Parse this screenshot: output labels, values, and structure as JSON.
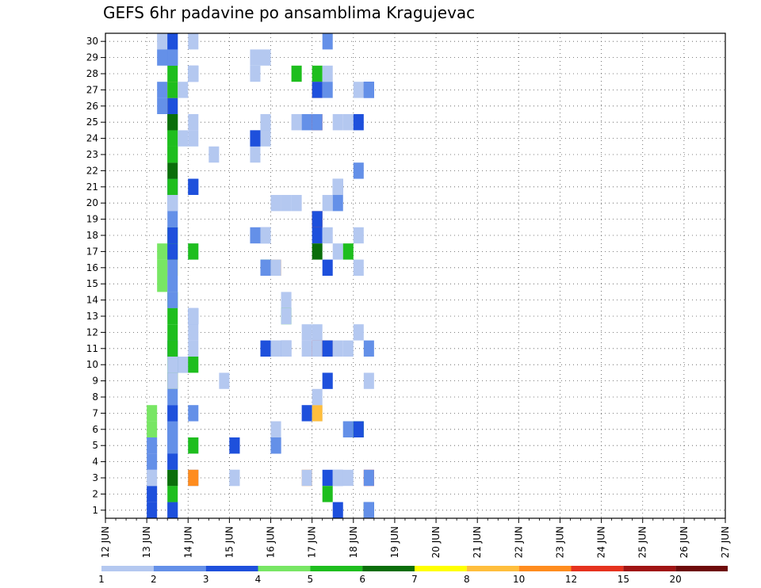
{
  "chart_data": {
    "type": "heatmap",
    "title": "GEFS 6hr padavine po ansamblima Kragujevac",
    "y_ticks": [
      "1",
      "2",
      "3",
      "4",
      "5",
      "6",
      "7",
      "8",
      "9",
      "10",
      "11",
      "12",
      "13",
      "14",
      "15",
      "16",
      "17",
      "18",
      "19",
      "20",
      "21",
      "22",
      "23",
      "24",
      "25",
      "26",
      "27",
      "28",
      "29",
      "30"
    ],
    "x_ticks": [
      "12 JUN",
      "13 JUN",
      "14 JUN",
      "15 JUN",
      "16 JUN",
      "17 JUN",
      "18 JUN",
      "19 JUN",
      "20 JUN",
      "21 JUN",
      "22 JUN",
      "23 JUN",
      "24 JUN",
      "25 JUN",
      "26 JUN",
      "27 JUN"
    ],
    "x_start": "12 JUN 00z",
    "step_hours": 6,
    "grid": true,
    "legend_values": [
      "1",
      "2",
      "3",
      "4",
      "5",
      "6",
      "7",
      "8",
      "10",
      "12",
      "15",
      "20"
    ],
    "legend_colors": [
      "#b4c8f0",
      "#6490e8",
      "#1e50dc",
      "#78e664",
      "#1ebe1e",
      "#0a6e0a",
      "#ffff00",
      "#ffbe3c",
      "#ff8c1e",
      "#e6321e",
      "#a01414",
      "#6e0a0a"
    ],
    "cells": [
      [
        3,
        1,
        1
      ],
      [
        3,
        1,
        2
      ],
      [
        1,
        1,
        3
      ],
      [
        2,
        1,
        4
      ],
      [
        2,
        1,
        5
      ],
      [
        4,
        1,
        6
      ],
      [
        4,
        1,
        7
      ],
      [
        4,
        2,
        15
      ],
      [
        4,
        2,
        17
      ],
      [
        4,
        2,
        16
      ],
      [
        2,
        2,
        26
      ],
      [
        2,
        2,
        27
      ],
      [
        1,
        2,
        30
      ],
      [
        2,
        2,
        29
      ],
      [
        2,
        3,
        1
      ],
      [
        3,
        3,
        1
      ],
      [
        5,
        3,
        2
      ],
      [
        5,
        3,
        3
      ],
      [
        6,
        3,
        3
      ],
      [
        2,
        3,
        4
      ],
      [
        3,
        3,
        4
      ],
      [
        3,
        3,
        5
      ],
      [
        2,
        3,
        5
      ],
      [
        3,
        3,
        6
      ],
      [
        2,
        3,
        6
      ],
      [
        2,
        3,
        7
      ],
      [
        3,
        3,
        7
      ],
      [
        2,
        3,
        8
      ],
      [
        6,
        3,
        9
      ],
      [
        1,
        3,
        9
      ],
      [
        5,
        3,
        10
      ],
      [
        1,
        3,
        10
      ],
      [
        3,
        3,
        11
      ],
      [
        5,
        3,
        11
      ],
      [
        5,
        3,
        12
      ],
      [
        5,
        3,
        13
      ],
      [
        5,
        3,
        14
      ],
      [
        2,
        3,
        14
      ],
      [
        2,
        3,
        15
      ],
      [
        7,
        3,
        16
      ],
      [
        2,
        3,
        16
      ],
      [
        5,
        3,
        17
      ],
      [
        3,
        3,
        17
      ],
      [
        5,
        3,
        18
      ],
      [
        3,
        3,
        18
      ],
      [
        2,
        3,
        19
      ],
      [
        2,
        3,
        20
      ],
      [
        1,
        3,
        20
      ],
      [
        3,
        3,
        21
      ],
      [
        5,
        3,
        21
      ],
      [
        6,
        3,
        22
      ],
      [
        5,
        3,
        23
      ],
      [
        5,
        3,
        24
      ],
      [
        5,
        3,
        23
      ],
      [
        5,
        3,
        24
      ],
      [
        5,
        3,
        25
      ],
      [
        6,
        3,
        25
      ],
      [
        8,
        3,
        26
      ],
      [
        3,
        3,
        26
      ],
      [
        8,
        3,
        27
      ],
      [
        5,
        3,
        27
      ],
      [
        5,
        3,
        28
      ],
      [
        3,
        3,
        29
      ],
      [
        2,
        3,
        29
      ],
      [
        2,
        3,
        30
      ],
      [
        3,
        3,
        30
      ],
      [
        2,
        4,
        10
      ],
      [
        1,
        4,
        10
      ],
      [
        1,
        4,
        24
      ],
      [
        1,
        4,
        27
      ],
      [
        2,
        5,
        3
      ],
      [
        9,
        5,
        3
      ],
      [
        1,
        5,
        5
      ],
      [
        5,
        5,
        5
      ],
      [
        2,
        5,
        7
      ],
      [
        5,
        5,
        10
      ],
      [
        1,
        5,
        12
      ],
      [
        1,
        5,
        11
      ],
      [
        2,
        5,
        13
      ],
      [
        1,
        5,
        13
      ],
      [
        1,
        5,
        17
      ],
      [
        5,
        5,
        17
      ],
      [
        2,
        5,
        21
      ],
      [
        3,
        5,
        21
      ],
      [
        1,
        5,
        24
      ],
      [
        1,
        5,
        25
      ],
      [
        2,
        5,
        28
      ],
      [
        1,
        5,
        28
      ],
      [
        1,
        5,
        30
      ],
      [
        1,
        7,
        23
      ],
      [
        1,
        8,
        9
      ],
      [
        3,
        9,
        5
      ],
      [
        3,
        9,
        5
      ],
      [
        1,
        9,
        3
      ],
      [
        1,
        9,
        3
      ],
      [
        1,
        11,
        23
      ],
      [
        1,
        11,
        29
      ],
      [
        1,
        11,
        28
      ],
      [
        2,
        11,
        24
      ],
      [
        3,
        11,
        24
      ],
      [
        2,
        11,
        18
      ],
      [
        2,
        12,
        25
      ],
      [
        1,
        12,
        29
      ],
      [
        1,
        12,
        24
      ],
      [
        5,
        12,
        16
      ],
      [
        2,
        12,
        16
      ],
      [
        3,
        12,
        11
      ],
      [
        2,
        12,
        18
      ],
      [
        1,
        12,
        18
      ],
      [
        1,
        12,
        25
      ],
      [
        8,
        13,
        16
      ],
      [
        10,
        13,
        16
      ],
      [
        8,
        13,
        16
      ],
      [
        1,
        13,
        16
      ],
      [
        1,
        13,
        5
      ],
      [
        3,
        13,
        5
      ],
      [
        2,
        13,
        5
      ],
      [
        1,
        13,
        6
      ],
      [
        1,
        13,
        11
      ],
      [
        1,
        13,
        20
      ],
      [
        1,
        14,
        20
      ],
      [
        1,
        14,
        14
      ],
      [
        5,
        14,
        13
      ],
      [
        1,
        14,
        13
      ],
      [
        3,
        14,
        11
      ],
      [
        1,
        14,
        11
      ],
      [
        5,
        15,
        28
      ],
      [
        1,
        15,
        20
      ],
      [
        1,
        15,
        25
      ],
      [
        9,
        16,
        3
      ],
      [
        1,
        16,
        3
      ],
      [
        3,
        16,
        7
      ],
      [
        2,
        16,
        25
      ],
      [
        1,
        16,
        12
      ],
      [
        1,
        16,
        11
      ],
      [
        9,
        17,
        27
      ],
      [
        5,
        17,
        28
      ],
      [
        3,
        17,
        27
      ],
      [
        3,
        17,
        18
      ],
      [
        10,
        17,
        25
      ],
      [
        10,
        17,
        11
      ],
      [
        1,
        17,
        11
      ],
      [
        1,
        17,
        12
      ],
      [
        11,
        17,
        19
      ],
      [
        3,
        17,
        19
      ],
      [
        6,
        17,
        17
      ],
      [
        1,
        17,
        7
      ],
      [
        8,
        17,
        7
      ],
      [
        1,
        17,
        8
      ],
      [
        2,
        17,
        25
      ],
      [
        3,
        18,
        3
      ],
      [
        1,
        18,
        9
      ],
      [
        5,
        18,
        2
      ],
      [
        11,
        18,
        11
      ],
      [
        3,
        18,
        11
      ],
      [
        3,
        18,
        9
      ],
      [
        3,
        18,
        16
      ],
      [
        1,
        18,
        28
      ],
      [
        1,
        18,
        20
      ],
      [
        1,
        18,
        18
      ],
      [
        2,
        18,
        30
      ],
      [
        2,
        18,
        27
      ],
      [
        2,
        19,
        3
      ],
      [
        1,
        19,
        3
      ],
      [
        1,
        19,
        25
      ],
      [
        2,
        19,
        20
      ],
      [
        2,
        19,
        21
      ],
      [
        1,
        19,
        21
      ],
      [
        1,
        19,
        17
      ],
      [
        1,
        19,
        11
      ],
      [
        3,
        19,
        1
      ],
      [
        1,
        20,
        6
      ],
      [
        2,
        20,
        6
      ],
      [
        5,
        20,
        17
      ],
      [
        1,
        20,
        25
      ],
      [
        1,
        20,
        3
      ],
      [
        1,
        20,
        11
      ],
      [
        2,
        21,
        22
      ],
      [
        1,
        21,
        27
      ],
      [
        5,
        21,
        6
      ],
      [
        3,
        21,
        6
      ],
      [
        1,
        21,
        18
      ],
      [
        1,
        21,
        12
      ],
      [
        1,
        21,
        16
      ],
      [
        3,
        21,
        25
      ],
      [
        1,
        22,
        27
      ],
      [
        6,
        22,
        1
      ],
      [
        3,
        22,
        1
      ],
      [
        2,
        22,
        1
      ],
      [
        3,
        22,
        27
      ],
      [
        2,
        22,
        27
      ],
      [
        1,
        22,
        9
      ],
      [
        2,
        22,
        11
      ],
      [
        10,
        22,
        3
      ],
      [
        2,
        22,
        3
      ]
    ]
  }
}
